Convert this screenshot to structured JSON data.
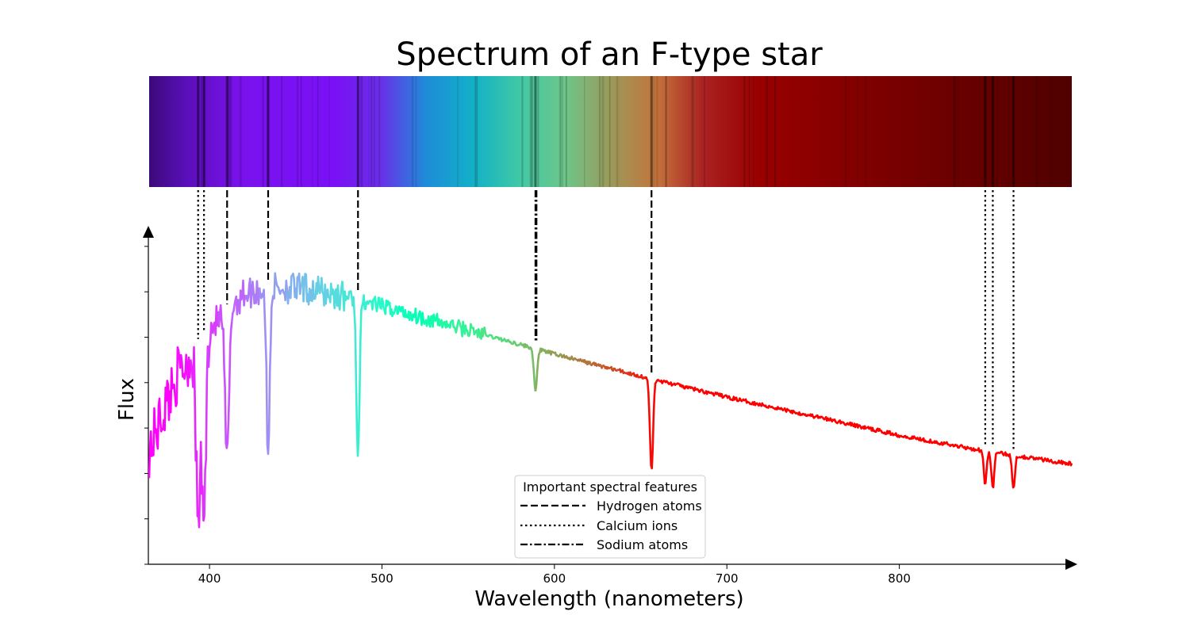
{
  "chart_data": {
    "type": "line",
    "title": "Spectrum of an F-type star",
    "xlabel": "Wavelength (nanometers)",
    "ylabel": "Flux",
    "xlim": [
      365,
      900
    ],
    "ylim": [
      0,
      1.0
    ],
    "x_ticks": [
      400,
      500,
      600,
      700,
      800
    ],
    "grid": false,
    "colormap": "rainbow",
    "legend": {
      "title": "Important spectral features",
      "placement": "lower center",
      "entries": [
        {
          "label": "Hydrogen atoms",
          "style": "dashed"
        },
        {
          "label": "Calcium ions",
          "style": "dotted"
        },
        {
          "label": "Sodium atoms",
          "style": "dashdot"
        }
      ]
    },
    "continuum": {
      "x": [
        365,
        380,
        400,
        420,
        440,
        460,
        480,
        500,
        550,
        600,
        650,
        700,
        750,
        800,
        850,
        900
      ],
      "y": [
        0.36,
        0.58,
        0.74,
        0.85,
        0.87,
        0.86,
        0.84,
        0.81,
        0.735,
        0.66,
        0.59,
        0.525,
        0.465,
        0.405,
        0.355,
        0.315
      ]
    },
    "absorption_lines": [
      {
        "x": 393.4,
        "y": 0.14,
        "element": "Calcium ions"
      },
      {
        "x": 396.8,
        "y": 0.16,
        "element": "Calcium ions"
      },
      {
        "x": 410.2,
        "y": 0.33,
        "element": "Hydrogen atoms"
      },
      {
        "x": 434.0,
        "y": 0.33,
        "element": "Hydrogen atoms"
      },
      {
        "x": 486.1,
        "y": 0.33,
        "element": "Hydrogen atoms"
      },
      {
        "x": 589.0,
        "y": 0.54,
        "element": "Sodium atoms"
      },
      {
        "x": 656.3,
        "y": 0.29,
        "element": "Hydrogen atoms"
      },
      {
        "x": 849.8,
        "y": 0.25,
        "element": "Calcium ions"
      },
      {
        "x": 854.2,
        "y": 0.24,
        "element": "Calcium ions"
      },
      {
        "x": 866.2,
        "y": 0.24,
        "element": "Calcium ions"
      }
    ],
    "feature_markers": [
      {
        "x": 393.4,
        "style": "dotted"
      },
      {
        "x": 396.8,
        "style": "dotted"
      },
      {
        "x": 410.2,
        "style": "dashed"
      },
      {
        "x": 434.0,
        "style": "dashed"
      },
      {
        "x": 486.1,
        "style": "dashed"
      },
      {
        "x": 589.0,
        "style": "dashdot"
      },
      {
        "x": 589.6,
        "style": "dashdot"
      },
      {
        "x": 656.3,
        "style": "dashed"
      },
      {
        "x": 849.8,
        "style": "dotted"
      },
      {
        "x": 854.2,
        "style": "dotted"
      },
      {
        "x": 866.2,
        "style": "dotted"
      }
    ]
  }
}
